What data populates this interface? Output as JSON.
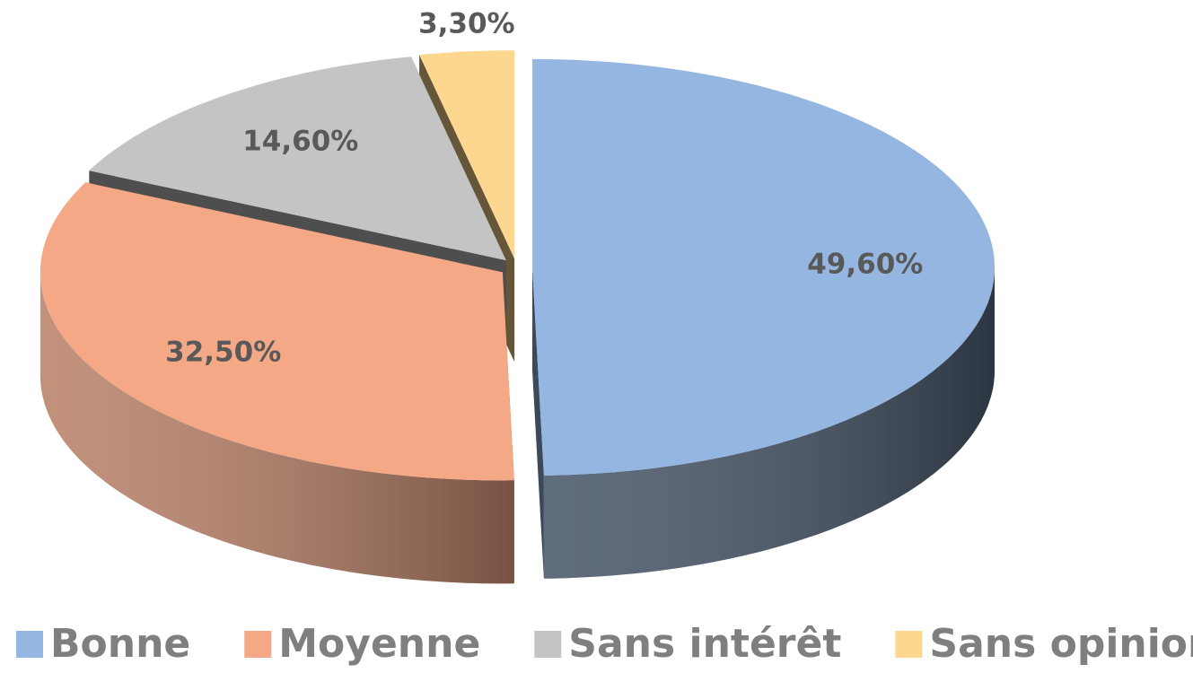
{
  "chart_data": {
    "type": "pie3d",
    "categories": [
      "Bonne",
      "Moyenne",
      "Sans intérêt",
      "Sans opinion"
    ],
    "values": [
      49.6,
      32.5,
      14.6,
      3.3
    ],
    "value_labels": [
      "49,60%",
      "32,50%",
      "14,60%",
      "3,30%"
    ],
    "colors": [
      "#95b6e0",
      "#f4a886",
      "#c4c4c4",
      "#fdd68f"
    ],
    "legend": "bottom"
  }
}
